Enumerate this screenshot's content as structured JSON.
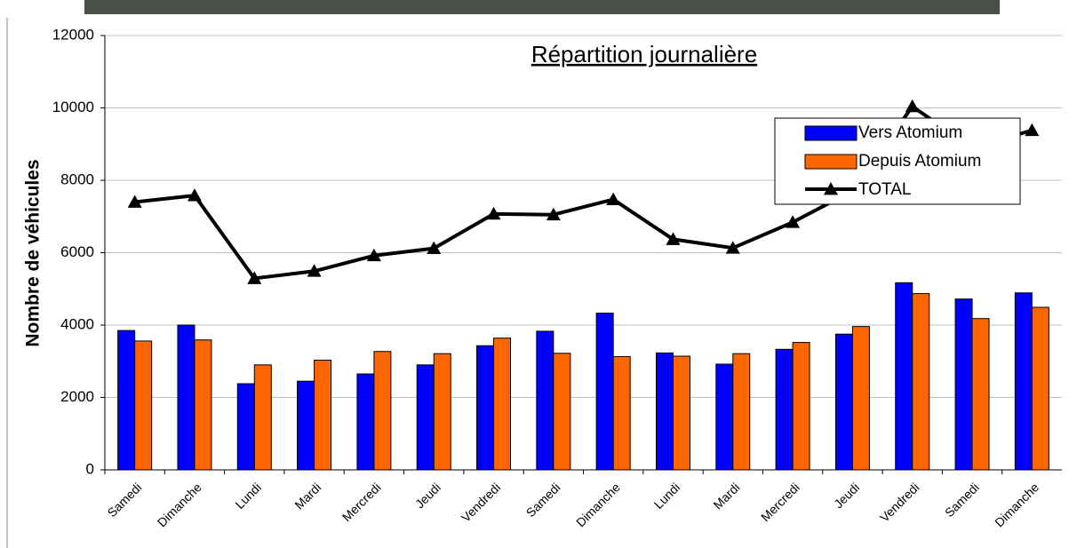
{
  "chart_data": {
    "type": "bar_line",
    "title": "Répartition journalière",
    "y_label": "Nombre de véhicules",
    "categories": [
      "Samedi",
      "Dimanche",
      "Lundi",
      "Mardi",
      "Mercredi",
      "Jeudi",
      "Vendredi",
      "Samedi",
      "Dimanche",
      "Lundi",
      "Mardi",
      "Mercredi",
      "Jeudi",
      "Vendredi",
      "Samedi",
      "Dimanche"
    ],
    "series": [
      {
        "name": "Vers Atomium",
        "kind": "bar",
        "color": "#0000ff",
        "values": [
          3850,
          4000,
          2380,
          2450,
          2650,
          2900,
          3430,
          3830,
          4330,
          3230,
          2920,
          3330,
          3750,
          5170,
          4720,
          4890
        ]
      },
      {
        "name": "Depuis Atomium",
        "kind": "bar",
        "color": "#ff6600",
        "values": [
          3560,
          3590,
          2900,
          3030,
          3270,
          3210,
          3640,
          3220,
          3130,
          3140,
          3210,
          3520,
          3960,
          4870,
          4180,
          4490
        ]
      },
      {
        "name": "TOTAL",
        "kind": "line",
        "color": "#000000",
        "values": [
          7400,
          7580,
          5290,
          5490,
          5920,
          6120,
          7070,
          7050,
          7470,
          6370,
          6130,
          6840,
          7710,
          10040,
          8900,
          9380
        ]
      }
    ],
    "ylim": [
      0,
      12000
    ],
    "yticks": [
      0,
      2000,
      4000,
      6000,
      8000,
      10000,
      12000
    ],
    "grid": true,
    "legend": "upper right"
  }
}
